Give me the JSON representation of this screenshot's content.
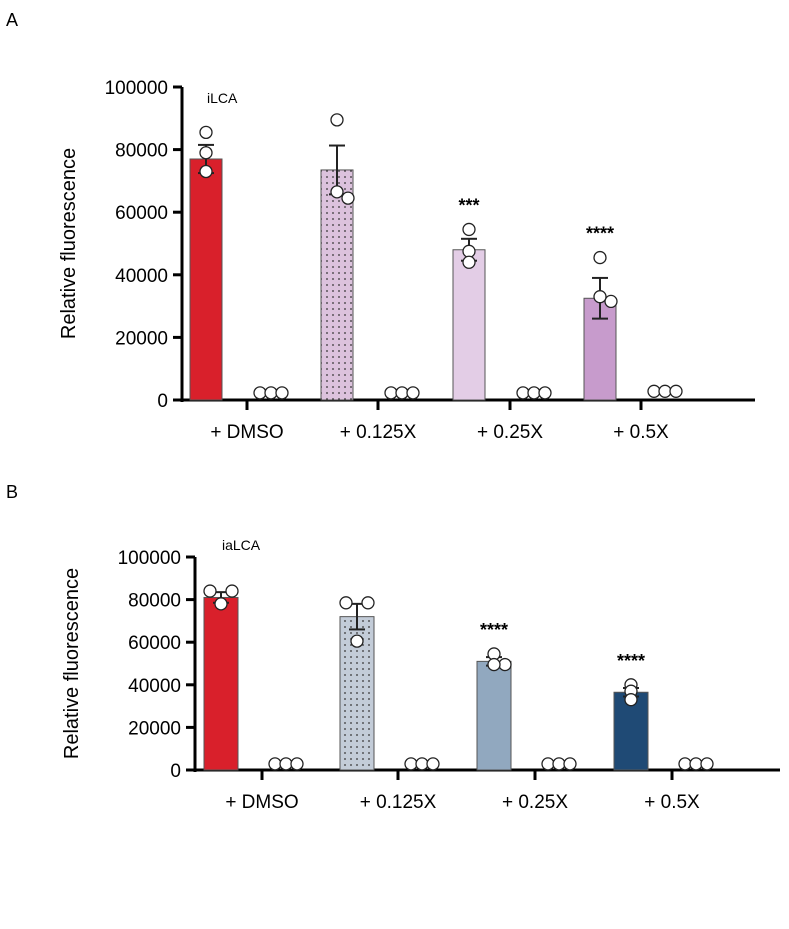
{
  "chart_data": [
    {
      "type": "bar",
      "panel_label": "A",
      "title": "iLCA",
      "ylabel": "Relative fluorescence",
      "ylim": [
        0,
        100000
      ],
      "yticks": [
        0,
        20000,
        40000,
        60000,
        80000,
        100000
      ],
      "categories": [
        "+ DMSO",
        "+ 0.125X",
        "+ 0.25X",
        "+ 0.5X"
      ],
      "colors": [
        "#d9202b",
        "#dcc2dd",
        "#e3cde6",
        "#c79bcc"
      ],
      "patterned": [
        false,
        true,
        false,
        false
      ],
      "values": [
        77000,
        73500,
        48000,
        32500
      ],
      "sem": [
        4500,
        7800,
        3500,
        6500
      ],
      "points": [
        [
          85500,
          79000,
          73000
        ],
        [
          89500,
          64500,
          66500
        ],
        [
          54500,
          47500,
          44000
        ],
        [
          45500,
          31500,
          33000
        ]
      ],
      "control_values": [
        1000,
        1000,
        1000,
        1500
      ],
      "significance": [
        "",
        "",
        "***",
        "****"
      ]
    },
    {
      "type": "bar",
      "panel_label": "B",
      "title": "iaLCA",
      "ylabel": "Relative fluorescence",
      "ylim": [
        0,
        100000
      ],
      "yticks": [
        0,
        20000,
        40000,
        60000,
        80000,
        100000
      ],
      "categories": [
        "+ DMSO",
        "+ 0.125X",
        "+ 0.25X",
        "+ 0.5X"
      ],
      "colors": [
        "#d9202b",
        "#c3ccd8",
        "#91a8bf",
        "#1f4a75"
      ],
      "patterned": [
        false,
        true,
        false,
        false
      ],
      "values": [
        81000,
        72000,
        51000,
        36500
      ],
      "sem": [
        2500,
        6000,
        2000,
        2000
      ],
      "points": [
        [
          84000,
          84000,
          78000
        ],
        [
          78500,
          78500,
          60500
        ],
        [
          54500,
          49500,
          49500
        ],
        [
          40000,
          37000,
          33000
        ]
      ],
      "control_values": [
        1000,
        1000,
        1000,
        1000
      ],
      "significance": [
        "",
        "",
        "****",
        "****"
      ]
    }
  ]
}
